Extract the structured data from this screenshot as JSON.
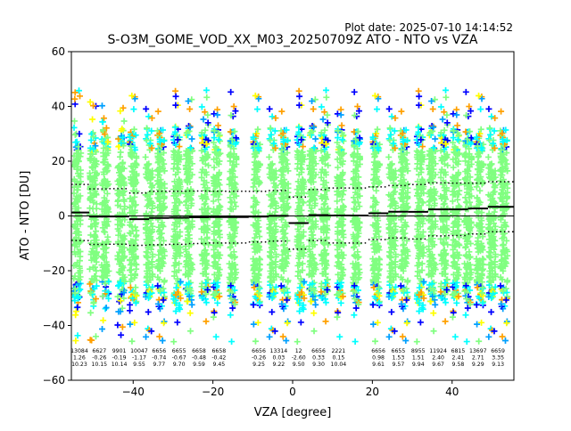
{
  "header": {
    "plot_date": "Plot date: 2025-07-10 14:14:52",
    "title": "S-O3M_GOME_VOD_XX_M03_20250709Z ATO - NTO vs VZA"
  },
  "chart_data": {
    "type": "scatter",
    "title": "S-O3M_GOME_VOD_XX_M03_20250709Z ATO - NTO vs VZA",
    "xlabel": "VZA [degree]",
    "ylabel": "ATO - NTO [DU]",
    "xlim": [
      -55.5,
      55.5
    ],
    "ylim": [
      -60,
      60
    ],
    "xticks": [
      -40,
      -20,
      0,
      20,
      40
    ],
    "yticks": [
      -60,
      -40,
      -20,
      0,
      20,
      40,
      60
    ],
    "grid": false,
    "colormap": [
      "#0000ff",
      "#00a0ff",
      "#00ffff",
      "#80ff80",
      "#ffff00",
      "#ffa000"
    ],
    "bin_centers": [
      -54,
      -50,
      -47,
      -43,
      -40,
      -36,
      -33,
      -29,
      -26,
      -22,
      -19,
      -15,
      -9,
      -5,
      -2,
      2,
      5,
      8,
      12,
      16,
      21,
      25,
      28,
      32,
      35,
      38,
      41,
      44,
      47,
      50,
      53
    ],
    "stats": [
      {
        "x": -53.5,
        "n": "13084",
        "mean": "1.26",
        "std": "10.23"
      },
      {
        "x": -48.5,
        "n": "6627",
        "mean": "-0.26",
        "std": "10.15"
      },
      {
        "x": -43.5,
        "n": "9901",
        "mean": "-0.19",
        "std": "10.14"
      },
      {
        "x": -38.5,
        "n": "10047",
        "mean": "-1.17",
        "std": "9.55"
      },
      {
        "x": -33.5,
        "n": "6656",
        "mean": "-0.74",
        "std": "9.77"
      },
      {
        "x": -28.5,
        "n": "6655",
        "mean": "-0.67",
        "std": "9.70"
      },
      {
        "x": -23.5,
        "n": "6658",
        "mean": "-0.48",
        "std": "9.59"
      },
      {
        "x": -18.5,
        "n": "6658",
        "mean": "-0.42",
        "std": "9.45"
      },
      {
        "x": -8.5,
        "n": "6656",
        "mean": "-0.26",
        "std": "9.25"
      },
      {
        "x": -3.5,
        "n": "13314",
        "mean": "0.03",
        "std": "9.22"
      },
      {
        "x": 1.5,
        "n": "12",
        "mean": "-2.60",
        "std": "9.50"
      },
      {
        "x": 6.5,
        "n": "6656",
        "mean": "0.33",
        "std": "9.30"
      },
      {
        "x": 11.5,
        "n": "2221",
        "mean": "0.15",
        "std": "10.04"
      },
      {
        "x": 21.5,
        "n": "6656",
        "mean": "0.98",
        "std": "9.61"
      },
      {
        "x": 26.5,
        "n": "6655",
        "mean": "1.53",
        "std": "9.57"
      },
      {
        "x": 31.5,
        "n": "8955",
        "mean": "1.51",
        "std": "9.94"
      },
      {
        "x": 36.5,
        "n": "11924",
        "mean": "2.40",
        "std": "9.67"
      },
      {
        "x": 41.5,
        "n": "6815",
        "mean": "2.41",
        "std": "9.58"
      },
      {
        "x": 46.5,
        "n": "13697",
        "mean": "2.71",
        "std": "9.29"
      },
      {
        "x": 51.5,
        "n": "6659",
        "mean": "3.35",
        "std": "9.13"
      }
    ],
    "mean_line": [
      {
        "x0": -55.5,
        "x1": -51,
        "y": 1.26
      },
      {
        "x0": -51,
        "x1": -46,
        "y": -0.26
      },
      {
        "x0": -46,
        "x1": -41,
        "y": -0.19
      },
      {
        "x0": -41,
        "x1": -36,
        "y": -1.17
      },
      {
        "x0": -36,
        "x1": -31,
        "y": -0.74
      },
      {
        "x0": -31,
        "x1": -26,
        "y": -0.67
      },
      {
        "x0": -26,
        "x1": -21,
        "y": -0.48
      },
      {
        "x0": -21,
        "x1": -11,
        "y": -0.42
      },
      {
        "x0": -11,
        "x1": -6,
        "y": -0.26
      },
      {
        "x0": -6,
        "x1": -1,
        "y": 0.03
      },
      {
        "x0": -1,
        "x1": 4,
        "y": -2.6
      },
      {
        "x0": 4,
        "x1": 9,
        "y": 0.33
      },
      {
        "x0": 9,
        "x1": 19,
        "y": 0.15
      },
      {
        "x0": 19,
        "x1": 24,
        "y": 0.98
      },
      {
        "x0": 24,
        "x1": 29,
        "y": 1.53
      },
      {
        "x0": 29,
        "x1": 34,
        "y": 1.51
      },
      {
        "x0": 34,
        "x1": 39,
        "y": 2.4
      },
      {
        "x0": 39,
        "x1": 44,
        "y": 2.41
      },
      {
        "x0": 44,
        "x1": 49,
        "y": 2.71
      },
      {
        "x0": 49,
        "x1": 55.5,
        "y": 3.35
      }
    ]
  }
}
